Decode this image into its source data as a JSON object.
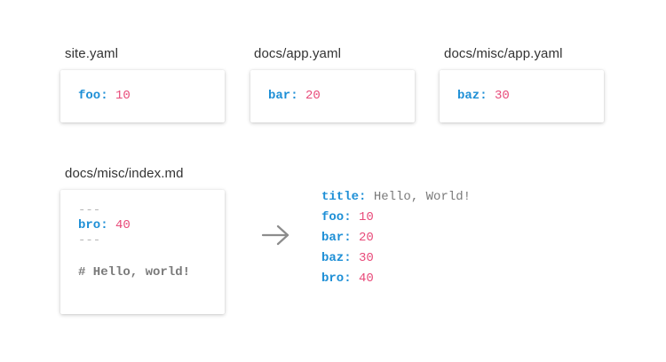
{
  "files": [
    {
      "label": "site.yaml",
      "key": "foo",
      "value": "10"
    },
    {
      "label": "docs/app.yaml",
      "key": "bar",
      "value": "20"
    },
    {
      "label": "docs/misc/app.yaml",
      "key": "baz",
      "value": "30"
    }
  ],
  "markdown": {
    "label": "docs/misc/index.md",
    "fence_open": "---",
    "key": "bro",
    "value": "40",
    "fence_close": "---",
    "heading": "# Hello, world!"
  },
  "result": {
    "title_key": "title",
    "title_value": "Hello, World!",
    "rows": [
      {
        "key": "foo",
        "value": "10"
      },
      {
        "key": "bar",
        "value": "20"
      },
      {
        "key": "baz",
        "value": "30"
      },
      {
        "key": "bro",
        "value": "40"
      }
    ]
  },
  "colors": {
    "key": "#1e8fd6",
    "number": "#e84b7a",
    "string": "#7a7a7a",
    "fence": "#b8b8b8",
    "arrow": "#8c8c8c"
  },
  "icons": {
    "arrow": "right-arrow-icon"
  }
}
